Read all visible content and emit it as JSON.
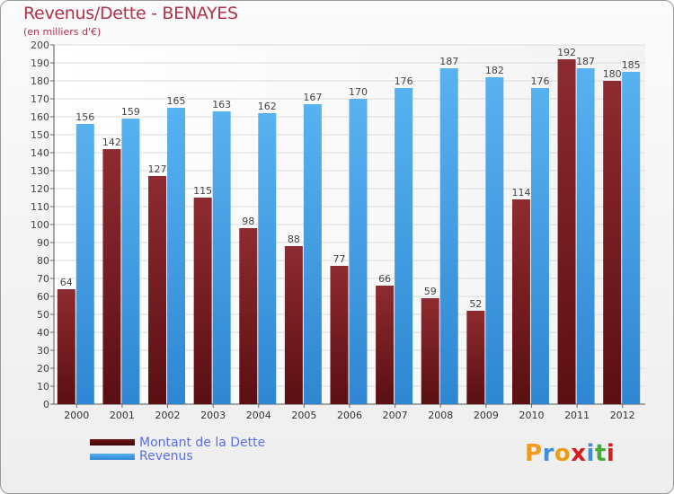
{
  "chart_data": {
    "type": "bar",
    "title": "Revenus/Dette - BENAYES",
    "subtitle": "(en milliers d'€)",
    "categories": [
      "2000",
      "2001",
      "2002",
      "2003",
      "2004",
      "2005",
      "2006",
      "2007",
      "2008",
      "2009",
      "2010",
      "2011",
      "2012"
    ],
    "series": [
      {
        "name": "Montant de la Dette",
        "color": "#8b2a2f",
        "values": [
          64,
          142,
          127,
          115,
          98,
          88,
          77,
          66,
          59,
          52,
          114,
          192,
          180
        ]
      },
      {
        "name": "Revenus",
        "color": "#4aa3e8",
        "values": [
          156,
          159,
          165,
          163,
          162,
          167,
          170,
          176,
          187,
          182,
          176,
          187,
          185
        ]
      }
    ],
    "ylim": [
      0,
      200
    ],
    "y_tick_step": 10,
    "grid": true,
    "legend_position": "bottom-left"
  },
  "logo": {
    "text": "Proxiti",
    "colors": [
      "#f39a1a",
      "#3f8fd6",
      "#e6a018",
      "#d81b1b",
      "#3f8fd6",
      "#49a83a",
      "#d81b1b"
    ]
  }
}
